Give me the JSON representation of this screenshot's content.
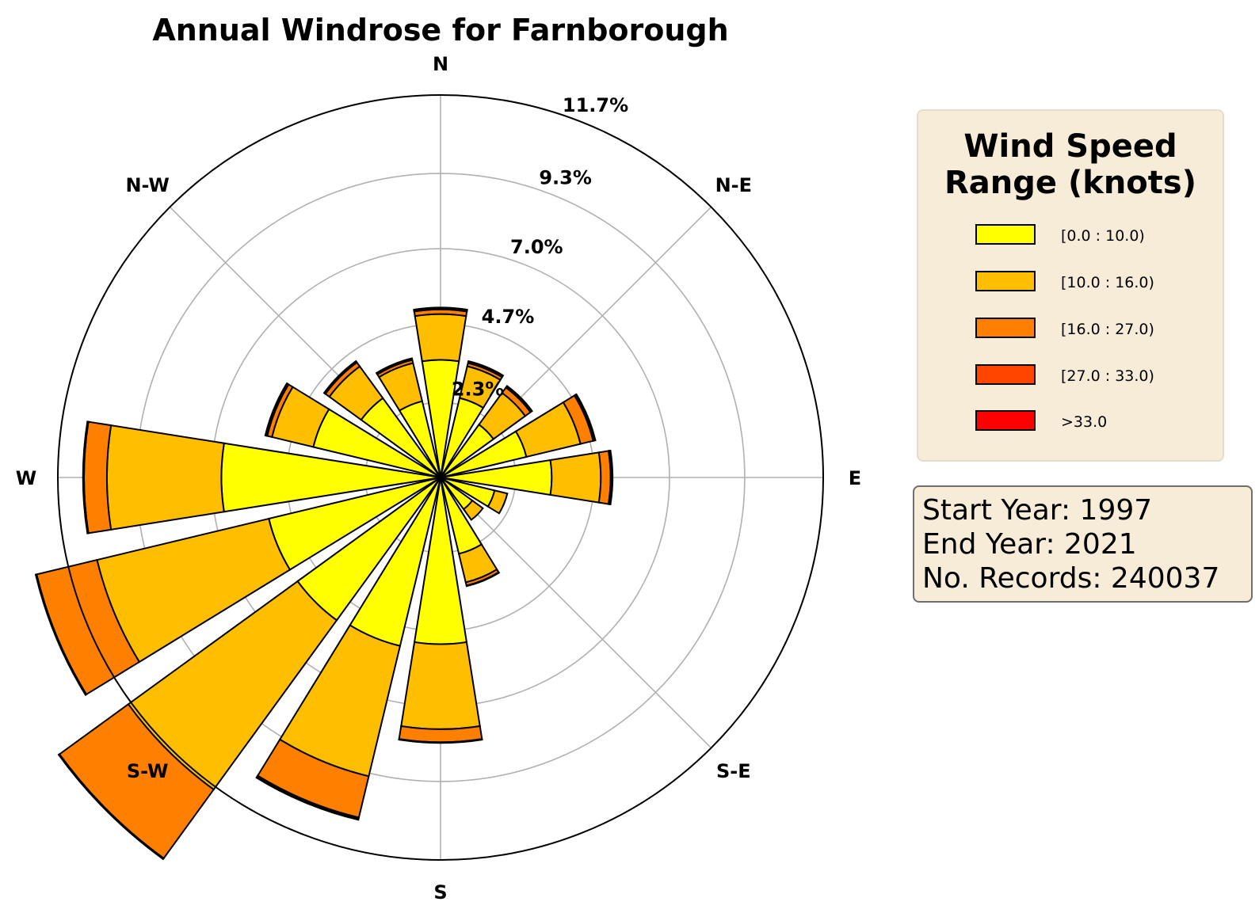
{
  "chart_data": {
    "type": "windrose",
    "title": "Annual Windrose for Farnborough",
    "directions": [
      "N",
      "NNE",
      "NE",
      "ENE",
      "E",
      "ESE",
      "SE",
      "SSE",
      "S",
      "SSW",
      "SW",
      "WSW",
      "W",
      "WNW",
      "NW",
      "NNW"
    ],
    "compass_labels": [
      {
        "label": "N",
        "angle": 0
      },
      {
        "label": "N-E",
        "angle": 45
      },
      {
        "label": "E",
        "angle": 90
      },
      {
        "label": "S-E",
        "angle": 135
      },
      {
        "label": "S",
        "angle": 180
      },
      {
        "label": "S-W",
        "angle": 225
      },
      {
        "label": "W",
        "angle": 270
      },
      {
        "label": "N-W",
        "angle": 315
      }
    ],
    "radial_ticks": [
      {
        "value": 2.3,
        "label": "2.3%"
      },
      {
        "value": 4.7,
        "label": "4.7%"
      },
      {
        "value": 7.0,
        "label": "7.0%"
      },
      {
        "value": 9.3,
        "label": "9.3%"
      },
      {
        "value": 11.7,
        "label": "11.7%"
      }
    ],
    "rmax": 11.7,
    "unit": "%",
    "series": [
      {
        "name": "[0.0 : 10.0)",
        "color": "#ffff00",
        "values": [
          3.6,
          2.5,
          2.0,
          2.7,
          3.4,
          1.7,
          1.2,
          2.4,
          5.1,
          5.3,
          5.4,
          5.4,
          6.7,
          4.0,
          3.0,
          2.4
        ]
      },
      {
        "name": "[10.0 : 16.0)",
        "color": "#ffbf00",
        "values": [
          1.4,
          1.0,
          1.2,
          1.7,
          1.5,
          0.4,
          0.4,
          0.9,
          2.6,
          4.1,
          6.4,
          5.4,
          3.5,
          1.3,
          1.2,
          1.2
        ]
      },
      {
        "name": "[16.0 : 27.0)",
        "color": "#ff8000",
        "values": [
          0.14,
          0.1,
          0.2,
          0.4,
          0.3,
          0.0,
          0.0,
          0.1,
          0.4,
          1.3,
          2.6,
          1.9,
          0.7,
          0.15,
          0.15,
          0.1
        ]
      },
      {
        "name": "[27.0 : 33.0)",
        "color": "#ff4500",
        "values": [
          0.04,
          0.04,
          0.04,
          0.05,
          0.04,
          0.0,
          0.0,
          0.02,
          0.02,
          0.05,
          0.02,
          0.02,
          0.02,
          0.04,
          0.03,
          0.03
        ]
      },
      {
        "name": ">33.0",
        "color": "#ff0000",
        "values": [
          0.02,
          0.02,
          0.02,
          0.02,
          0.02,
          0.0,
          0.0,
          0.0,
          0.0,
          0.02,
          0.01,
          0.01,
          0.01,
          0.02,
          0.02,
          0.02
        ]
      }
    ]
  },
  "legend": {
    "title_line1": "Wind Speed",
    "title_line2": "Range (knots)",
    "items": [
      {
        "label": "[0.0 : 10.0)",
        "color": "#ffff00"
      },
      {
        "label": "[10.0 : 16.0)",
        "color": "#ffbf00"
      },
      {
        "label": "[16.0 : 27.0)",
        "color": "#ff8000"
      },
      {
        "label": "[27.0 : 33.0)",
        "color": "#ff4500"
      },
      {
        "label": ">33.0",
        "color": "#ff0000"
      }
    ]
  },
  "info": {
    "start_year": "Start Year: 1997",
    "end_year": "End Year: 2021",
    "records": "No. Records: 240037"
  }
}
